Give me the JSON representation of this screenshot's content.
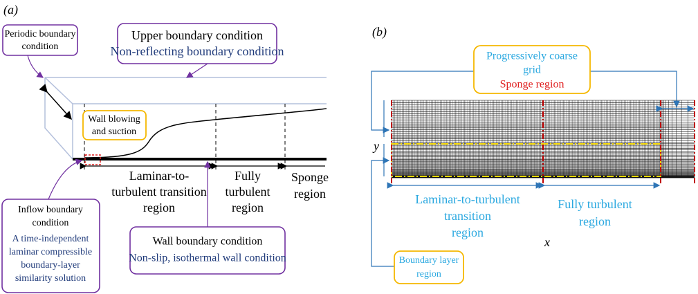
{
  "panel_a": {
    "label": "(a)",
    "periodic_box": {
      "lines": [
        "Periodic boundary",
        "condition"
      ]
    },
    "upper_box": {
      "title": "Upper boundary condition",
      "subtitle": "Non-reflecting boundary condition"
    },
    "wall_blowing": {
      "lines": [
        "Wall blowing",
        "and suction"
      ]
    },
    "regions": {
      "transition": [
        "Laminar-to-",
        "turbulent transition",
        "region"
      ],
      "turbulent": [
        "Fully",
        "turbulent",
        "region"
      ],
      "sponge": [
        "Sponge",
        "region"
      ]
    },
    "inflow_box": {
      "title": [
        "Inflow boundary",
        "condition"
      ],
      "description": [
        "A time-independent",
        "laminar compressible",
        "boundary-layer",
        "similarity solution"
      ]
    },
    "wall_box": {
      "title": "Wall boundary condition",
      "subtitle": "Non-slip, isothermal wall condition"
    }
  },
  "panel_b": {
    "label": "(b)",
    "coarse_box": {
      "lines": [
        "Progressively coarse",
        "grid"
      ],
      "sponge": "Sponge region"
    },
    "y_label": "y",
    "x_label": "x",
    "regions": {
      "transition": [
        "Laminar-to-turbulent",
        "transition",
        "region"
      ],
      "turbulent": [
        "Fully turbulent",
        "region"
      ]
    },
    "boundary_box": {
      "lines": [
        "Boundary layer",
        "region"
      ]
    }
  }
}
